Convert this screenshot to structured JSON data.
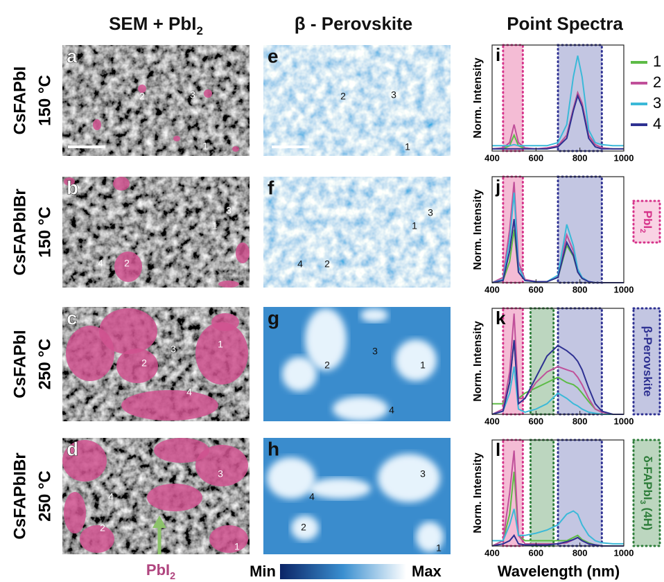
{
  "header": {
    "columns": [
      [
        {
          "t": "SEM + PbI"
        },
        {
          "t": "2",
          "sub": true
        }
      ],
      [
        {
          "t": "β - Perovskite"
        }
      ],
      [
        {
          "t": "Point Spectra"
        }
      ]
    ]
  },
  "rows": [
    {
      "material": "CsFAPbI",
      "temperature": "150 °C",
      "sem_letter": "a",
      "map_letter": "e",
      "sem_points": [
        "2",
        "3",
        "1"
      ],
      "map_points": [
        "2",
        "3",
        "1"
      ]
    },
    {
      "material": "CsFAPbIBr",
      "temperature": "150 °C",
      "sem_letter": "b",
      "map_letter": "f",
      "sem_points": [
        "3",
        "1",
        "4",
        "2"
      ],
      "map_points": [
        "3",
        "1",
        "4",
        "2"
      ]
    },
    {
      "material": "CsFAPbI",
      "temperature": "250 °C",
      "sem_letter": "c",
      "map_letter": "g",
      "sem_points": [
        "2",
        "3",
        "1",
        "4"
      ],
      "map_points": [
        "3",
        "2",
        "1",
        "4"
      ]
    },
    {
      "material": "CsFAPbIBr",
      "temperature": "250 °C",
      "sem_letter": "d",
      "map_letter": "h",
      "sem_points": [
        "3",
        "4",
        "2",
        "1"
      ],
      "map_points": [
        "3",
        "4",
        "2",
        "1"
      ]
    }
  ],
  "footer": {
    "arrow_label": [
      {
        "t": "PbI"
      },
      {
        "t": "2",
        "sub": true
      }
    ],
    "colorbar_min": "Min",
    "colorbar_max": "Max"
  },
  "chart_data": [
    {
      "type": "line",
      "title": "i",
      "ylabel": "Norm. Intensity",
      "xlim": [
        400,
        1000
      ],
      "ylim": [
        0,
        1
      ],
      "xticks": [
        400,
        600,
        800,
        1000
      ],
      "legend": true,
      "bands": [
        {
          "range": [
            450,
            540
          ],
          "color": "#f4bcd5",
          "border": "#d6338a"
        },
        {
          "range": [
            700,
            900
          ],
          "color": "#c3c6e2",
          "border": "#2e3192"
        }
      ],
      "x": [
        400,
        450,
        480,
        500,
        520,
        550,
        600,
        650,
        700,
        740,
        770,
        790,
        810,
        840,
        870,
        900,
        950,
        1000
      ],
      "series": [
        {
          "name": "1",
          "color": "#5dbb46",
          "values": [
            0.02,
            0.02,
            0.05,
            0.15,
            0.05,
            0.02,
            0.02,
            0.02,
            0.05,
            0.15,
            0.4,
            0.55,
            0.45,
            0.15,
            0.06,
            0.03,
            0.02,
            0.02
          ]
        },
        {
          "name": "2",
          "color": "#c0509a",
          "values": [
            0.02,
            0.03,
            0.08,
            0.25,
            0.08,
            0.03,
            0.02,
            0.03,
            0.05,
            0.15,
            0.4,
            0.55,
            0.45,
            0.15,
            0.06,
            0.03,
            0.02,
            0.02
          ]
        },
        {
          "name": "3",
          "color": "#3bb9d8",
          "values": [
            0.05,
            0.05,
            0.05,
            0.06,
            0.05,
            0.05,
            0.05,
            0.05,
            0.08,
            0.25,
            0.7,
            0.9,
            0.7,
            0.2,
            0.08,
            0.06,
            0.05,
            0.05
          ]
        },
        {
          "name": "4",
          "color": "#2e3192",
          "values": [
            0.02,
            0.02,
            0.02,
            0.02,
            0.02,
            0.02,
            0.02,
            0.02,
            0.04,
            0.12,
            0.38,
            0.52,
            0.42,
            0.12,
            0.04,
            0.02,
            0.02,
            0.02
          ]
        }
      ]
    },
    {
      "type": "line",
      "title": "j",
      "ylabel": "Norm. Intensity",
      "xlim": [
        400,
        1000
      ],
      "ylim": [
        0,
        1
      ],
      "xticks": [
        400,
        600,
        800,
        1000
      ],
      "bands": [
        {
          "range": [
            450,
            540
          ],
          "color": "#f4bcd5",
          "border": "#d6338a"
        },
        {
          "range": [
            700,
            900
          ],
          "color": "#c3c6e2",
          "border": "#2e3192"
        }
      ],
      "annotation": {
        "parts": [
          {
            "t": "PbI"
          },
          {
            "t": "2",
            "sub": true
          }
        ],
        "color": "#d6338a",
        "fill": "#f9d3e4"
      },
      "x": [
        400,
        450,
        480,
        500,
        520,
        550,
        600,
        650,
        700,
        740,
        770,
        790,
        810,
        840,
        870,
        900,
        950,
        1000
      ],
      "series": [
        {
          "color": "#5dbb46",
          "values": [
            0,
            0.02,
            0.2,
            0.5,
            0.1,
            0.02,
            0.01,
            0.01,
            0.05,
            0.35,
            0.25,
            0.1,
            0.04,
            0.01,
            0,
            0,
            0,
            0
          ]
        },
        {
          "color": "#c0509a",
          "values": [
            0,
            0.05,
            0.5,
            0.95,
            0.2,
            0.03,
            0.01,
            0.01,
            0.06,
            0.45,
            0.3,
            0.12,
            0.05,
            0.01,
            0,
            0,
            0,
            0
          ]
        },
        {
          "color": "#3bb9d8",
          "values": [
            0,
            0.03,
            0.4,
            0.85,
            0.15,
            0.02,
            0.01,
            0.01,
            0.07,
            0.55,
            0.35,
            0.13,
            0.05,
            0.01,
            0,
            0,
            0,
            0
          ]
        },
        {
          "color": "#2e3192",
          "values": [
            0,
            0.02,
            0.3,
            0.6,
            0.1,
            0.02,
            0.01,
            0.01,
            0.05,
            0.38,
            0.26,
            0.1,
            0.04,
            0.01,
            0,
            0,
            0,
            0
          ]
        }
      ]
    },
    {
      "type": "line",
      "title": "k",
      "ylabel": "Norm. Intensity",
      "xlim": [
        400,
        1000
      ],
      "ylim": [
        0,
        1
      ],
      "xticks": [
        400,
        600,
        800,
        1000
      ],
      "bands": [
        {
          "range": [
            450,
            540
          ],
          "color": "#f4bcd5",
          "border": "#d6338a"
        },
        {
          "range": [
            575,
            680
          ],
          "color": "#bcd6bf",
          "border": "#2e7d3a"
        },
        {
          "range": [
            700,
            900
          ],
          "color": "#c3c6e2",
          "border": "#2e3192"
        }
      ],
      "annotation": {
        "parts": [
          {
            "t": "β-Perovskite"
          }
        ],
        "color": "#2e3192",
        "fill": "#c3c6e2"
      },
      "x": [
        400,
        450,
        480,
        500,
        520,
        550,
        600,
        650,
        700,
        740,
        770,
        790,
        810,
        840,
        870,
        900,
        950,
        1000
      ],
      "series": [
        {
          "color": "#5dbb46",
          "values": [
            0.1,
            0.1,
            0.3,
            0.7,
            0.15,
            0.2,
            0.25,
            0.3,
            0.35,
            0.3,
            0.28,
            0.25,
            0.2,
            0.12,
            0.05,
            0.02,
            0,
            0
          ]
        },
        {
          "color": "#c0509a",
          "values": [
            0,
            0.05,
            0.4,
            0.95,
            0.15,
            0.15,
            0.3,
            0.4,
            0.45,
            0.42,
            0.4,
            0.35,
            0.28,
            0.15,
            0.05,
            0.02,
            0,
            0
          ]
        },
        {
          "color": "#3bb9d8",
          "values": [
            0,
            0.03,
            0.2,
            0.45,
            0.05,
            0.02,
            0.05,
            0.1,
            0.2,
            0.15,
            0.1,
            0.08,
            0.05,
            0.02,
            0.01,
            0,
            0,
            0
          ]
        },
        {
          "color": "#2e3192",
          "values": [
            0,
            0.03,
            0.3,
            0.7,
            0.1,
            0.15,
            0.35,
            0.55,
            0.65,
            0.6,
            0.55,
            0.5,
            0.42,
            0.25,
            0.1,
            0.03,
            0,
            0
          ]
        }
      ]
    },
    {
      "type": "line",
      "title": "l",
      "ylabel": "Norm. Intensity",
      "xlabel": "Wavelength (nm)",
      "xlim": [
        400,
        1000
      ],
      "ylim": [
        0,
        1
      ],
      "xticks": [
        400,
        600,
        800,
        1000
      ],
      "bands": [
        {
          "range": [
            450,
            540
          ],
          "color": "#f4bcd5",
          "border": "#d6338a"
        },
        {
          "range": [
            575,
            680
          ],
          "color": "#bcd6bf",
          "border": "#2e7d3a"
        },
        {
          "range": [
            700,
            900
          ],
          "color": "#c3c6e2",
          "border": "#2e3192"
        }
      ],
      "annotation": {
        "parts": [
          {
            "t": "δ-FAPbI"
          },
          {
            "t": "3",
            "sub": true
          },
          {
            "t": " (4H)"
          }
        ],
        "color": "#2e7d3a",
        "fill": "#bcd6bf"
      },
      "x": [
        400,
        450,
        480,
        500,
        520,
        550,
        600,
        650,
        700,
        740,
        770,
        790,
        810,
        840,
        870,
        900,
        950,
        1000
      ],
      "series": [
        {
          "color": "#5dbb46",
          "values": [
            0,
            0.05,
            0.3,
            0.7,
            0.1,
            0.05,
            0.05,
            0.05,
            0.05,
            0.05,
            0.08,
            0.1,
            0.06,
            0.03,
            0.01,
            0,
            0,
            0
          ]
        },
        {
          "color": "#c0509a",
          "values": [
            0,
            0.05,
            0.5,
            0.9,
            0.1,
            0.02,
            0.02,
            0.02,
            0.02,
            0.03,
            0.06,
            0.08,
            0.05,
            0.02,
            0.01,
            0,
            0,
            0
          ]
        },
        {
          "color": "#3bb9d8",
          "values": [
            0.05,
            0.05,
            0.2,
            0.35,
            0.1,
            0.1,
            0.12,
            0.15,
            0.2,
            0.3,
            0.33,
            0.3,
            0.2,
            0.1,
            0.05,
            0.03,
            0.02,
            0.02
          ]
        },
        {
          "color": "#2e3192",
          "values": [
            0,
            0.02,
            0.05,
            0.1,
            0.02,
            0.01,
            0.01,
            0.01,
            0.02,
            0.04,
            0.06,
            0.08,
            0.05,
            0.02,
            0.01,
            0,
            0,
            0
          ]
        }
      ]
    }
  ]
}
